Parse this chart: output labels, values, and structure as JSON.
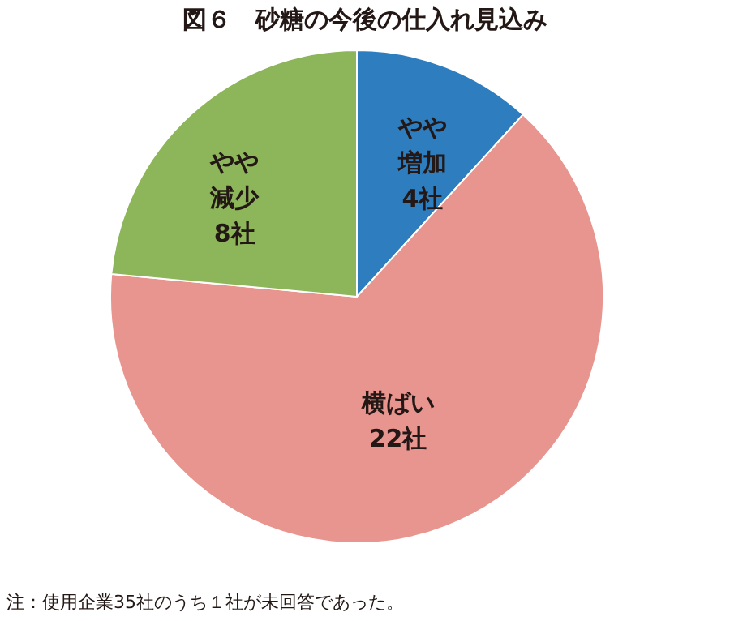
{
  "chart_data": {
    "type": "pie",
    "title": "図６　砂糖の今後の仕入れ見込み",
    "categories": [
      "やや増加",
      "横ばい",
      "やや減少"
    ],
    "values": [
      4,
      22,
      8
    ],
    "colors": [
      "#2e7dbf",
      "#e8958f",
      "#8db55a"
    ],
    "value_labels": [
      "4社",
      "22社",
      "8社"
    ],
    "annotations": [
      "注：使用企業35社のうち１社が未回答であった。"
    ]
  }
}
